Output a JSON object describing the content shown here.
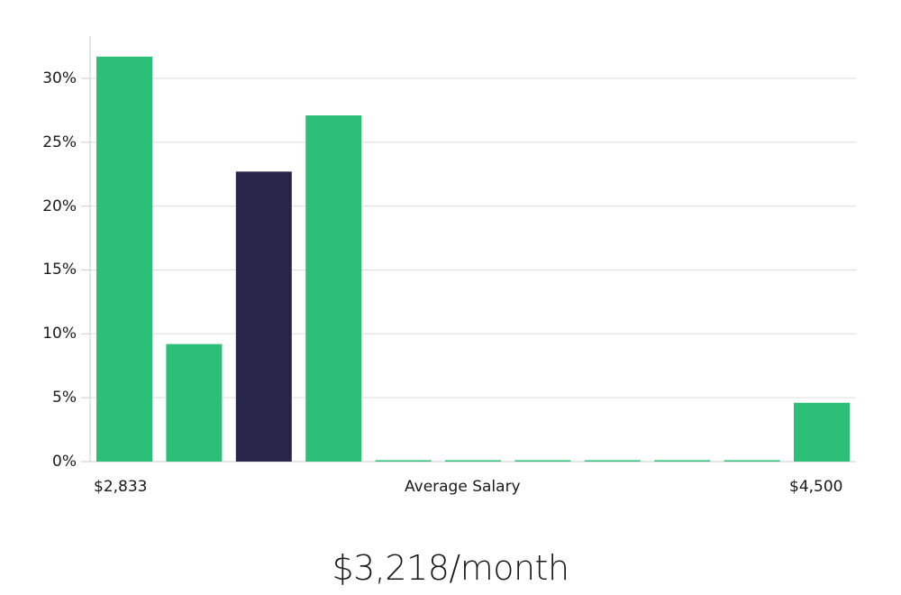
{
  "chart_data": {
    "type": "bar",
    "title": "",
    "xlabel": "Average Salary",
    "ylabel": "",
    "x_range_labels": {
      "min": "$2,833",
      "max": "$4,500"
    },
    "categories": [
      "bin1",
      "bin2",
      "bin3",
      "bin4",
      "bin5",
      "bin6",
      "bin7",
      "bin8",
      "bin9",
      "bin10",
      "bin11"
    ],
    "values": [
      31.7,
      9.2,
      22.7,
      27.1,
      0,
      0,
      0,
      0,
      0,
      0,
      4.6
    ],
    "highlight_index": 2,
    "ylim": [
      0,
      33.3
    ],
    "yticks": [
      0,
      5,
      10,
      15,
      20,
      25,
      30
    ],
    "ytick_labels": [
      "0%",
      "5%",
      "10%",
      "15%",
      "20%",
      "25%",
      "30%"
    ],
    "grid": true,
    "legend": "none",
    "colors": {
      "bar": "#2bbf78",
      "highlight": "#28254a",
      "grid": "#dddddd",
      "axis": "#cccccc"
    }
  },
  "axis": {
    "x_min_label": "$2,833",
    "x_center_label": "Average Salary",
    "x_max_label": "$4,500"
  },
  "summary": {
    "salary_text": "$3,218/month"
  }
}
